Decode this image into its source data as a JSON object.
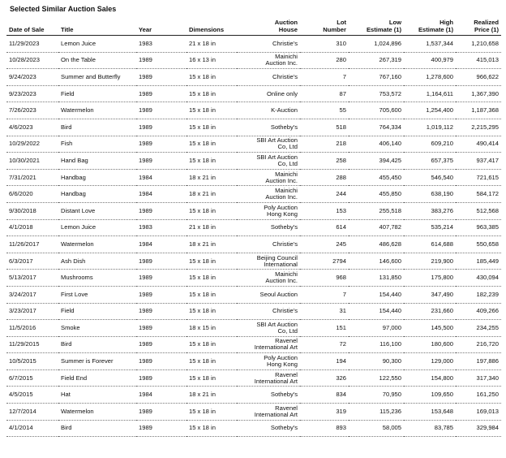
{
  "title": "Selected Similar Auction Sales",
  "table": {
    "headers": [
      "Date of Sale",
      "Title",
      "Year",
      "Dimensions",
      "Auction\nHouse",
      "Lot\nNumber",
      "Low\nEstimate (1)",
      "High\nEstimate (1)",
      "Realized\nPrice (1)"
    ],
    "rows": [
      [
        "11/29/2023",
        "Lemon Juice",
        "1983",
        "21 x 18 in",
        "Christie's",
        "310",
        "1,024,896",
        "1,537,344",
        "1,210,658"
      ],
      [
        "10/28/2023",
        "On the Table",
        "1989",
        "16 x 13 in",
        "Mainichi\nAuction Inc.",
        "280",
        "267,319",
        "400,979",
        "415,013"
      ],
      [
        "9/24/2023",
        "Summer and Butterfly",
        "1989",
        "15 x 18 in",
        "Christie's",
        "7",
        "767,160",
        "1,278,600",
        "966,622"
      ],
      [
        "9/23/2023",
        "Field",
        "1989",
        "15 x 18 in",
        "Online only",
        "87",
        "753,572",
        "1,164,611",
        "1,367,390"
      ],
      [
        "7/26/2023",
        "Watermelon",
        "1989",
        "15 x 18 in",
        "K-Auction",
        "55",
        "705,600",
        "1,254,400",
        "1,187,368"
      ],
      [
        "4/6/2023",
        "Bird",
        "1989",
        "15 x 18 in",
        "Sotheby's",
        "518",
        "764,334",
        "1,019,112",
        "2,215,295"
      ],
      [
        "10/29/2022",
        "Fish",
        "1989",
        "15 x 18 in",
        "SBI Art Auction\nCo, Ltd",
        "218",
        "406,140",
        "609,210",
        "490,414"
      ],
      [
        "10/30/2021",
        "Hand Bag",
        "1989",
        "15 x 18 in",
        "SBI Art Auction\nCo, Ltd",
        "258",
        "394,425",
        "657,375",
        "937,417"
      ],
      [
        "7/31/2021",
        "Handbag",
        "1984",
        "18 x 21 in",
        "Mainichi\nAuction Inc.",
        "288",
        "455,450",
        "546,540",
        "721,615"
      ],
      [
        "6/6/2020",
        "Handbag",
        "1984",
        "18 x 21 in",
        "Mainichi\nAuction Inc.",
        "244",
        "455,850",
        "638,190",
        "584,172"
      ],
      [
        "9/30/2018",
        "Distant Love",
        "1989",
        "15 x 18 in",
        "Poly Auction\nHong Kong",
        "153",
        "255,518",
        "383,276",
        "512,568"
      ],
      [
        "4/1/2018",
        "Lemon Juice",
        "1983",
        "21 x 18 in",
        "Sotheby's",
        "614",
        "407,782",
        "535,214",
        "963,385"
      ],
      [
        "11/26/2017",
        "Watermelon",
        "1984",
        "18 x 21 in",
        "Christie's",
        "245",
        "486,628",
        "614,688",
        "550,658"
      ],
      [
        "6/3/2017",
        "Ash Dish",
        "1989",
        "15 x 18 in",
        "Beijing Council\nInternational",
        "2794",
        "146,600",
        "219,900",
        "185,449"
      ],
      [
        "5/13/2017",
        "Mushrooms",
        "1989",
        "15 x 18 in",
        "Mainichi\nAuction Inc.",
        "968",
        "131,850",
        "175,800",
        "430,094"
      ],
      [
        "3/24/2017",
        "First Love",
        "1989",
        "15 x 18 in",
        "Seoul Auction",
        "7",
        "154,440",
        "347,490",
        "182,239"
      ],
      [
        "3/23/2017",
        "Field",
        "1989",
        "15 x 18 in",
        "Christie's",
        "31",
        "154,440",
        "231,660",
        "409,266"
      ],
      [
        "11/5/2016",
        "Smoke",
        "1989",
        "18 x 15 in",
        "SBI Art Auction\nCo, Ltd",
        "151",
        "97,000",
        "145,500",
        "234,255"
      ],
      [
        "11/29/2015",
        "Bird",
        "1989",
        "15 x 18 in",
        "Ravenel\nInternational Art",
        "72",
        "116,100",
        "180,600",
        "216,720"
      ],
      [
        "10/5/2015",
        "Summer is Forever",
        "1989",
        "15 x 18 in",
        "Poly Auction\nHong Kong",
        "194",
        "90,300",
        "129,000",
        "197,886"
      ],
      [
        "6/7/2015",
        "Field End",
        "1989",
        "15 x 18 in",
        "Ravenel\nInternational Art",
        "326",
        "122,550",
        "154,800",
        "317,340"
      ],
      [
        "4/5/2015",
        "Hat",
        "1984",
        "18 x 21 in",
        "Sotheby's",
        "834",
        "70,950",
        "109,650",
        "161,250"
      ],
      [
        "12/7/2014",
        "Watermelon",
        "1989",
        "15 x 18 in",
        "Ravenel\nInternational Art",
        "319",
        "115,236",
        "153,648",
        "169,013"
      ],
      [
        "4/1/2014",
        "Bird",
        "1989",
        "15 x 18 in",
        "Sotheby's",
        "893",
        "58,005",
        "83,785",
        "329,984"
      ]
    ]
  }
}
